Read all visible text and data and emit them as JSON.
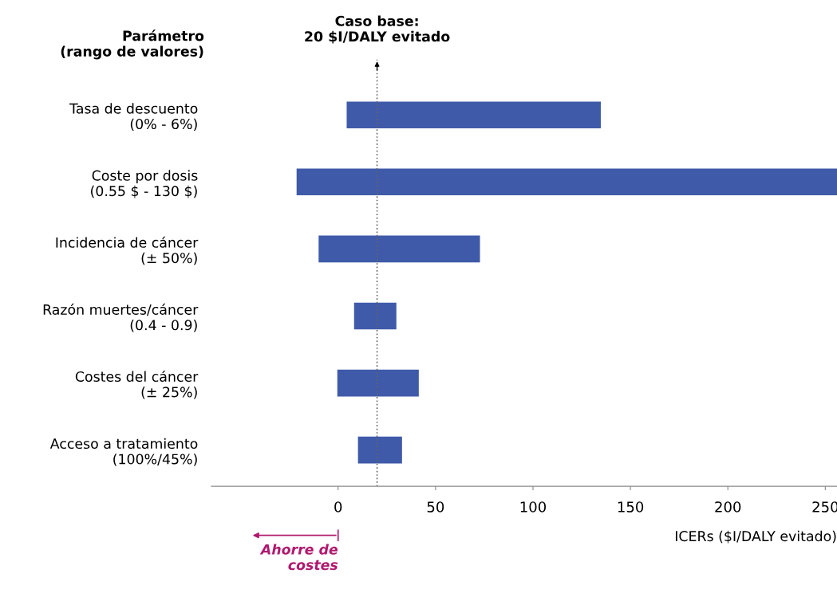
{
  "chart_data": {
    "type": "bar",
    "orientation": "horizontal",
    "categories": [
      "Tasa de descuento\n(0% - 6%)",
      "Coste por dosis\n(0.55 $ - 130 $)",
      "Incidencia de cáncer\n(± 50%)",
      "Razón muertes/cáncer\n(0.4 - 0.9)",
      "Costes del cáncer\n(± 25%)",
      "Acceso a tratamiento\n(100%/45%)"
    ],
    "base": [
      4.4,
      -21.3,
      -10,
      8.2,
      -0.4,
      10.2
    ],
    "values": [
      130.4,
      277.3,
      82.8,
      21.7,
      41.8,
      22.6
    ],
    "color": "#3f5aa8",
    "xlabel": "ICERs ($I/DALY evitado)",
    "xlim": [
      -65,
      256
    ],
    "xticks": [
      0,
      50,
      100,
      150,
      200,
      250
    ],
    "ref_lines": [
      {
        "axis": "x",
        "value": 20,
        "label": "Caso base:\n20 $I/DALY evitado",
        "line_style": "dotted",
        "color": "#666666"
      }
    ],
    "annotations": [
      "Parámetro\n(rango de valores)",
      "Ahorre de\ncostes"
    ]
  }
}
